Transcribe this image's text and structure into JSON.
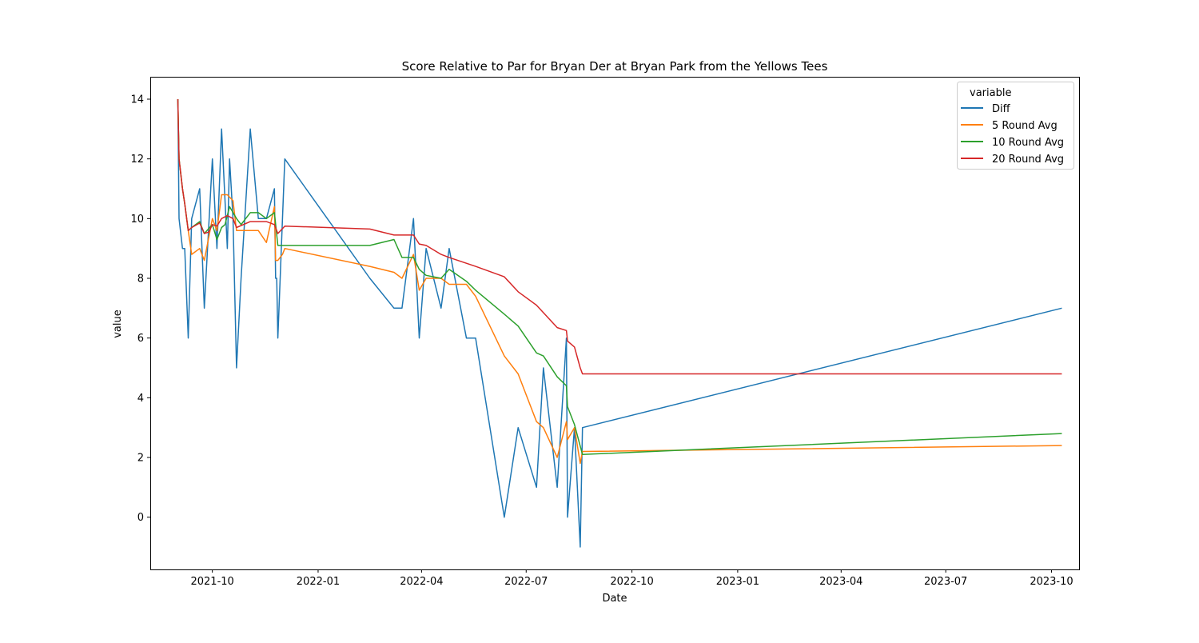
{
  "chart_data": {
    "type": "line",
    "title": "Score Relative to Par for Bryan Der at Bryan Park from the Yellows Tees",
    "xlabel": "Date",
    "ylabel": "value",
    "xlim": [
      "2021-08-08",
      "2023-10-25"
    ],
    "ylim": [
      -1.75,
      14.75
    ],
    "grid": false,
    "legend_position": "top-right",
    "legend_title": "variable",
    "x_ticks": [
      {
        "date": "2021-10-01",
        "label": "2021-10"
      },
      {
        "date": "2022-01-01",
        "label": "2022-01"
      },
      {
        "date": "2022-04-01",
        "label": "2022-04"
      },
      {
        "date": "2022-07-01",
        "label": "2022-07"
      },
      {
        "date": "2022-10-01",
        "label": "2022-10"
      },
      {
        "date": "2023-01-01",
        "label": "2023-01"
      },
      {
        "date": "2023-04-01",
        "label": "2023-04"
      },
      {
        "date": "2023-07-01",
        "label": "2023-07"
      },
      {
        "date": "2023-10-01",
        "label": "2023-10"
      }
    ],
    "y_ticks": [
      0,
      2,
      4,
      6,
      8,
      10,
      12,
      14
    ],
    "series": [
      {
        "name": "Diff",
        "color": "#1f77b4",
        "points": [
          [
            "2021-09-01",
            14
          ],
          [
            "2021-09-02",
            10
          ],
          [
            "2021-09-05",
            9
          ],
          [
            "2021-09-07",
            9
          ],
          [
            "2021-09-10",
            6
          ],
          [
            "2021-09-13",
            10
          ],
          [
            "2021-09-20",
            11
          ],
          [
            "2021-09-24",
            7
          ],
          [
            "2021-10-01",
            12
          ],
          [
            "2021-10-05",
            9
          ],
          [
            "2021-10-09",
            13
          ],
          [
            "2021-10-14",
            9
          ],
          [
            "2021-10-16",
            12
          ],
          [
            "2021-10-19",
            10
          ],
          [
            "2021-10-22",
            5
          ],
          [
            "2021-10-26",
            8
          ],
          [
            "2021-11-03",
            13
          ],
          [
            "2021-11-10",
            10
          ],
          [
            "2021-11-17",
            10
          ],
          [
            "2021-11-24",
            11
          ],
          [
            "2021-11-25",
            8
          ],
          [
            "2021-11-26",
            8
          ],
          [
            "2021-11-27",
            6
          ],
          [
            "2021-12-01",
            10
          ],
          [
            "2021-12-03",
            12
          ],
          [
            "2022-02-15",
            8
          ],
          [
            "2022-03-08",
            7
          ],
          [
            "2022-03-15",
            7
          ],
          [
            "2022-03-25",
            10
          ],
          [
            "2022-03-30",
            6
          ],
          [
            "2022-04-05",
            9
          ],
          [
            "2022-04-18",
            7
          ],
          [
            "2022-04-25",
            9
          ],
          [
            "2022-05-10",
            6
          ],
          [
            "2022-05-18",
            6
          ],
          [
            "2022-06-12",
            0
          ],
          [
            "2022-06-24",
            3
          ],
          [
            "2022-07-10",
            1
          ],
          [
            "2022-07-16",
            5
          ],
          [
            "2022-07-28",
            1
          ],
          [
            "2022-08-05",
            6
          ],
          [
            "2022-08-06",
            0
          ],
          [
            "2022-08-12",
            3
          ],
          [
            "2022-08-17",
            -1
          ],
          [
            "2022-08-19",
            3
          ],
          [
            "2023-10-10",
            7
          ]
        ]
      },
      {
        "name": "5 Round Avg",
        "color": "#ff7f0e",
        "points": [
          [
            "2021-09-01",
            14
          ],
          [
            "2021-09-02",
            12
          ],
          [
            "2021-09-05",
            11
          ],
          [
            "2021-09-07",
            10.5
          ],
          [
            "2021-09-10",
            9.6
          ],
          [
            "2021-09-13",
            8.8
          ],
          [
            "2021-09-20",
            9
          ],
          [
            "2021-09-24",
            8.6
          ],
          [
            "2021-10-01",
            10
          ],
          [
            "2021-10-05",
            9.6
          ],
          [
            "2021-10-09",
            10.8
          ],
          [
            "2021-10-14",
            10.8
          ],
          [
            "2021-10-19",
            10.6
          ],
          [
            "2021-10-22",
            9.6
          ],
          [
            "2021-10-26",
            9.6
          ],
          [
            "2021-11-03",
            9.6
          ],
          [
            "2021-11-10",
            9.6
          ],
          [
            "2021-11-17",
            9.2
          ],
          [
            "2021-11-24",
            10.4
          ],
          [
            "2021-11-25",
            8.6
          ],
          [
            "2021-11-27",
            8.6
          ],
          [
            "2021-12-01",
            8.8
          ],
          [
            "2021-12-03",
            9
          ],
          [
            "2022-02-15",
            8.4
          ],
          [
            "2022-03-08",
            8.2
          ],
          [
            "2022-03-15",
            8
          ],
          [
            "2022-03-25",
            8.8
          ],
          [
            "2022-03-30",
            7.6
          ],
          [
            "2022-04-05",
            8
          ],
          [
            "2022-04-18",
            8
          ],
          [
            "2022-04-25",
            7.8
          ],
          [
            "2022-05-10",
            7.8
          ],
          [
            "2022-05-18",
            7.4
          ],
          [
            "2022-06-12",
            5.4
          ],
          [
            "2022-06-24",
            4.8
          ],
          [
            "2022-07-10",
            3.2
          ],
          [
            "2022-07-16",
            3
          ],
          [
            "2022-07-28",
            2
          ],
          [
            "2022-08-05",
            3.2
          ],
          [
            "2022-08-06",
            2.6
          ],
          [
            "2022-08-12",
            3
          ],
          [
            "2022-08-17",
            1.8
          ],
          [
            "2022-08-19",
            2.2
          ],
          [
            "2023-10-10",
            2.4
          ]
        ]
      },
      {
        "name": "10 Round Avg",
        "color": "#2ca02c",
        "points": [
          [
            "2021-09-01",
            14
          ],
          [
            "2021-09-02",
            12
          ],
          [
            "2021-09-05",
            11
          ],
          [
            "2021-09-07",
            10.5
          ],
          [
            "2021-09-10",
            9.6
          ],
          [
            "2021-09-13",
            9.7
          ],
          [
            "2021-09-20",
            9.9
          ],
          [
            "2021-09-24",
            9.5
          ],
          [
            "2021-10-01",
            9.8
          ],
          [
            "2021-10-05",
            9.3
          ],
          [
            "2021-10-09",
            9.7
          ],
          [
            "2021-10-12",
            9.8
          ],
          [
            "2021-10-16",
            10.4
          ],
          [
            "2021-10-22",
            10
          ],
          [
            "2021-10-26",
            9.8
          ],
          [
            "2021-11-03",
            10.2
          ],
          [
            "2021-11-10",
            10.2
          ],
          [
            "2021-11-17",
            10
          ],
          [
            "2021-11-24",
            10.2
          ],
          [
            "2021-11-27",
            9.1
          ],
          [
            "2022-02-15",
            9.1
          ],
          [
            "2022-03-08",
            9.3
          ],
          [
            "2022-03-15",
            8.7
          ],
          [
            "2022-03-25",
            8.7
          ],
          [
            "2022-03-30",
            8.3
          ],
          [
            "2022-04-05",
            8.1
          ],
          [
            "2022-04-18",
            8
          ],
          [
            "2022-04-25",
            8.3
          ],
          [
            "2022-05-10",
            7.9
          ],
          [
            "2022-05-18",
            7.6
          ],
          [
            "2022-06-12",
            6.8
          ],
          [
            "2022-06-24",
            6.4
          ],
          [
            "2022-07-10",
            5.5
          ],
          [
            "2022-07-16",
            5.4
          ],
          [
            "2022-07-28",
            4.7
          ],
          [
            "2022-08-05",
            4.4
          ],
          [
            "2022-08-06",
            3.7
          ],
          [
            "2022-08-12",
            3.1
          ],
          [
            "2022-08-19",
            2.1
          ],
          [
            "2023-10-10",
            2.8
          ]
        ]
      },
      {
        "name": "20 Round Avg",
        "color": "#d62728",
        "points": [
          [
            "2021-09-01",
            14
          ],
          [
            "2021-09-02",
            12
          ],
          [
            "2021-09-05",
            11
          ],
          [
            "2021-09-07",
            10.5
          ],
          [
            "2021-09-10",
            9.6
          ],
          [
            "2021-09-13",
            9.7
          ],
          [
            "2021-09-20",
            9.85
          ],
          [
            "2021-09-24",
            9.5
          ],
          [
            "2021-09-28",
            9.55
          ],
          [
            "2021-10-01",
            9.8
          ],
          [
            "2021-10-05",
            9.75
          ],
          [
            "2021-10-09",
            10
          ],
          [
            "2021-10-14",
            10.1
          ],
          [
            "2021-10-19",
            10
          ],
          [
            "2021-10-22",
            9.7
          ],
          [
            "2021-11-03",
            9.9
          ],
          [
            "2021-11-10",
            9.9
          ],
          [
            "2021-11-17",
            9.9
          ],
          [
            "2021-11-24",
            9.8
          ],
          [
            "2021-11-27",
            9.5
          ],
          [
            "2021-12-03",
            9.75
          ],
          [
            "2022-02-15",
            9.65
          ],
          [
            "2022-03-08",
            9.45
          ],
          [
            "2022-03-25",
            9.45
          ],
          [
            "2022-03-30",
            9.15
          ],
          [
            "2022-04-05",
            9.1
          ],
          [
            "2022-04-18",
            8.8
          ],
          [
            "2022-04-25",
            8.7
          ],
          [
            "2022-05-18",
            8.4
          ],
          [
            "2022-06-12",
            8.05
          ],
          [
            "2022-06-24",
            7.55
          ],
          [
            "2022-07-10",
            7.1
          ],
          [
            "2022-07-28",
            6.35
          ],
          [
            "2022-08-05",
            6.25
          ],
          [
            "2022-08-06",
            5.9
          ],
          [
            "2022-08-12",
            5.7
          ],
          [
            "2022-08-17",
            5
          ],
          [
            "2022-08-19",
            4.8
          ],
          [
            "2023-10-10",
            4.8
          ]
        ]
      }
    ]
  }
}
